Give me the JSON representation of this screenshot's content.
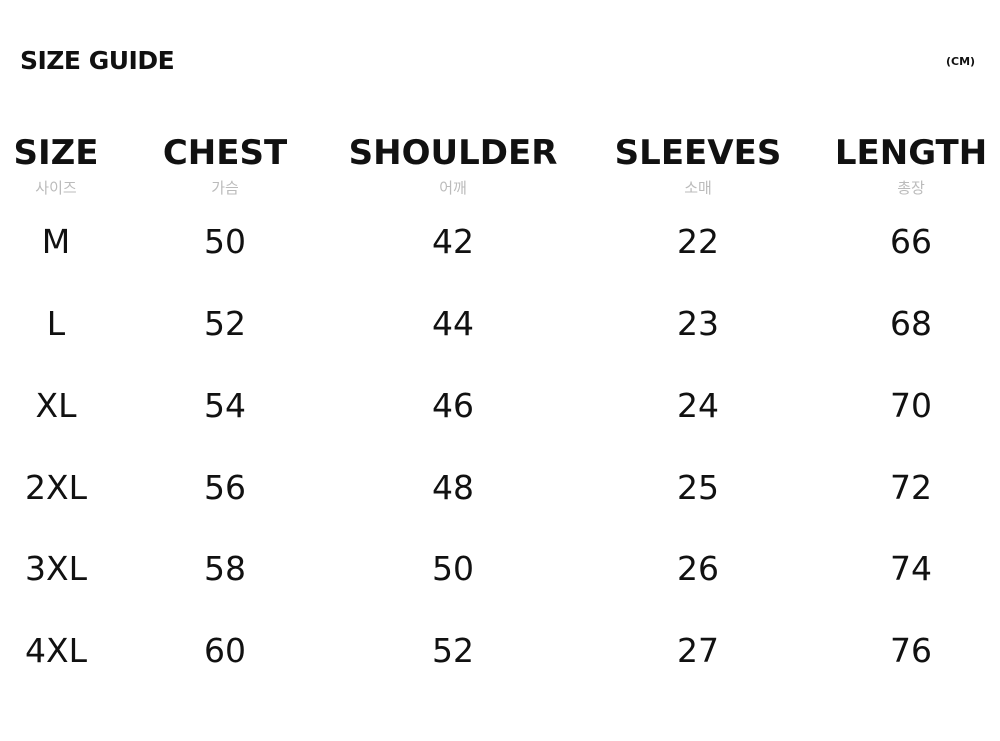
{
  "title": "SIZE GUIDE",
  "unit": "(CM)",
  "columns": [
    {
      "label": "SIZE",
      "sub": "사이즈",
      "values": [
        "M",
        "L",
        "XL",
        "2XL",
        "3XL",
        "4XL"
      ]
    },
    {
      "label": "CHEST",
      "sub": "가슴",
      "values": [
        "50",
        "52",
        "54",
        "56",
        "58",
        "60"
      ]
    },
    {
      "label": "SHOULDER",
      "sub": "어깨",
      "values": [
        "42",
        "44",
        "46",
        "48",
        "50",
        "52"
      ]
    },
    {
      "label": "SLEEVES",
      "sub": "소매",
      "values": [
        "22",
        "23",
        "24",
        "25",
        "26",
        "27"
      ]
    },
    {
      "label": "LENGTH",
      "sub": "총장",
      "values": [
        "66",
        "68",
        "70",
        "72",
        "74",
        "76"
      ]
    }
  ]
}
